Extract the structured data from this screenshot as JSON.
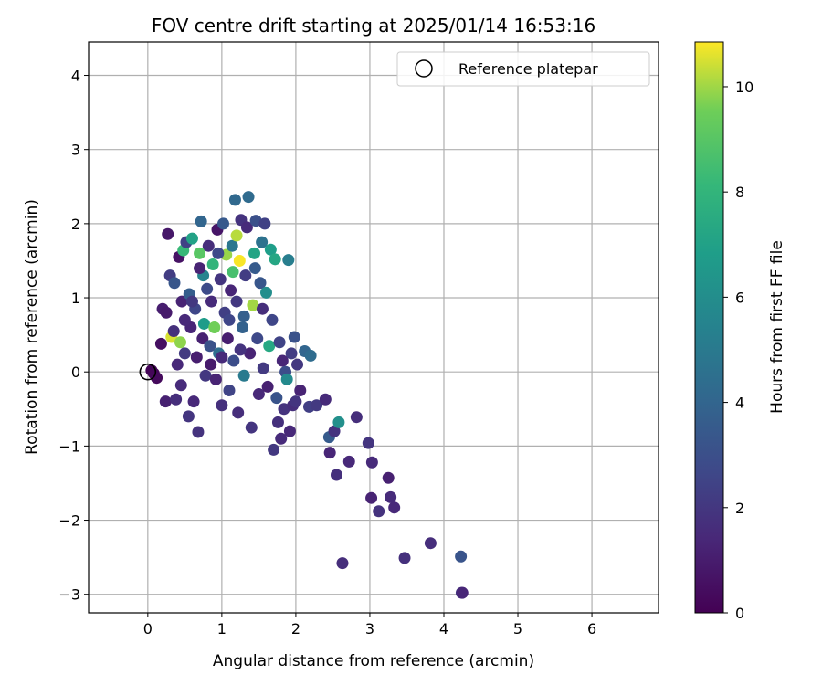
{
  "chart_data": {
    "type": "scatter",
    "title": "FOV centre drift starting at 2025/01/14 16:53:16",
    "xlabel": "Angular distance from reference (arcmin)",
    "ylabel": "Rotation from reference (arcmin)",
    "xlim": [
      -0.8,
      6.9
    ],
    "ylim": [
      -3.25,
      4.45
    ],
    "xticks": [
      0,
      1,
      2,
      3,
      4,
      5,
      6
    ],
    "yticks": [
      -3,
      -2,
      -1,
      0,
      1,
      2,
      3,
      4
    ],
    "grid": true,
    "legend": {
      "placement": "top-right",
      "entries": [
        "Reference platepar"
      ]
    },
    "colorbar": {
      "label": "Hours from first FF file",
      "range": [
        0,
        10.85
      ],
      "ticks": [
        0,
        2,
        4,
        6,
        8,
        10
      ],
      "colormap": "viridis"
    },
    "reference_point": {
      "x": 0,
      "y": 0
    },
    "points": [
      {
        "x": 0.05,
        "y": 0.02,
        "c": 0.1
      },
      {
        "x": 0.08,
        "y": -0.02,
        "c": 0.2
      },
      {
        "x": 0.12,
        "y": -0.08,
        "c": 0.3
      },
      {
        "x": 0.18,
        "y": 0.38,
        "c": 0.5
      },
      {
        "x": 0.2,
        "y": 0.85,
        "c": 1.0
      },
      {
        "x": 0.25,
        "y": 0.8,
        "c": 0.9
      },
      {
        "x": 0.27,
        "y": 1.86,
        "c": 0.8
      },
      {
        "x": 0.24,
        "y": -0.4,
        "c": 1.1
      },
      {
        "x": 0.3,
        "y": 1.3,
        "c": 2.2
      },
      {
        "x": 0.32,
        "y": 0.47,
        "c": 10.5
      },
      {
        "x": 0.35,
        "y": 0.55,
        "c": 1.7
      },
      {
        "x": 0.36,
        "y": 1.2,
        "c": 3.3
      },
      {
        "x": 0.38,
        "y": -0.37,
        "c": 1.6
      },
      {
        "x": 0.4,
        "y": 0.1,
        "c": 1.4
      },
      {
        "x": 0.42,
        "y": 1.55,
        "c": 0.6
      },
      {
        "x": 0.44,
        "y": 0.4,
        "c": 9.8
      },
      {
        "x": 0.45,
        "y": -0.18,
        "c": 1.5
      },
      {
        "x": 0.46,
        "y": 0.95,
        "c": 1.2
      },
      {
        "x": 0.48,
        "y": 1.64,
        "c": 8.2
      },
      {
        "x": 0.5,
        "y": 0.25,
        "c": 2.1
      },
      {
        "x": 0.52,
        "y": 1.75,
        "c": 2.4
      },
      {
        "x": 0.55,
        "y": -0.6,
        "c": 1.9
      },
      {
        "x": 0.56,
        "y": 1.05,
        "c": 3.6
      },
      {
        "x": 0.58,
        "y": 0.6,
        "c": 1.3
      },
      {
        "x": 0.6,
        "y": 1.8,
        "c": 7.0
      },
      {
        "x": 0.62,
        "y": -0.4,
        "c": 1.4
      },
      {
        "x": 0.64,
        "y": 0.85,
        "c": 2.6
      },
      {
        "x": 0.66,
        "y": 0.2,
        "c": 1.0
      },
      {
        "x": 0.68,
        "y": -0.81,
        "c": 1.8
      },
      {
        "x": 0.7,
        "y": 1.6,
        "c": 9.0
      },
      {
        "x": 0.72,
        "y": 2.03,
        "c": 4.0
      },
      {
        "x": 0.74,
        "y": 0.45,
        "c": 1.1
      },
      {
        "x": 0.75,
        "y": 1.3,
        "c": 5.5
      },
      {
        "x": 0.76,
        "y": 0.65,
        "c": 6.7
      },
      {
        "x": 0.78,
        "y": -0.05,
        "c": 2.0
      },
      {
        "x": 0.8,
        "y": 1.12,
        "c": 2.8
      },
      {
        "x": 0.82,
        "y": 1.7,
        "c": 1.6
      },
      {
        "x": 0.84,
        "y": 0.35,
        "c": 3.1
      },
      {
        "x": 0.86,
        "y": 0.95,
        "c": 1.5
      },
      {
        "x": 0.88,
        "y": 1.45,
        "c": 8.0
      },
      {
        "x": 0.9,
        "y": 0.6,
        "c": 9.5
      },
      {
        "x": 0.92,
        "y": -0.1,
        "c": 1.2
      },
      {
        "x": 0.94,
        "y": 1.92,
        "c": 0.7
      },
      {
        "x": 0.96,
        "y": 0.25,
        "c": 4.4
      },
      {
        "x": 0.98,
        "y": 1.25,
        "c": 1.9
      },
      {
        "x": 1.0,
        "y": -0.45,
        "c": 1.7
      },
      {
        "x": 1.02,
        "y": 2.0,
        "c": 3.4
      },
      {
        "x": 1.04,
        "y": 0.8,
        "c": 2.3
      },
      {
        "x": 1.06,
        "y": 1.58,
        "c": 9.9
      },
      {
        "x": 1.08,
        "y": 0.45,
        "c": 1.0
      },
      {
        "x": 1.1,
        "y": -0.25,
        "c": 2.5
      },
      {
        "x": 1.12,
        "y": 1.1,
        "c": 1.3
      },
      {
        "x": 1.14,
        "y": 1.7,
        "c": 4.8
      },
      {
        "x": 1.16,
        "y": 0.15,
        "c": 2.9
      },
      {
        "x": 1.18,
        "y": 2.32,
        "c": 4.1
      },
      {
        "x": 1.2,
        "y": 1.84,
        "c": 10.2
      },
      {
        "x": 1.2,
        "y": 0.95,
        "c": 2.0
      },
      {
        "x": 1.22,
        "y": -0.55,
        "c": 1.6
      },
      {
        "x": 1.24,
        "y": 1.5,
        "c": 10.8
      },
      {
        "x": 1.26,
        "y": 2.05,
        "c": 1.8
      },
      {
        "x": 1.28,
        "y": 0.6,
        "c": 3.8
      },
      {
        "x": 1.3,
        "y": -0.05,
        "c": 5.0
      },
      {
        "x": 1.32,
        "y": 1.3,
        "c": 2.2
      },
      {
        "x": 1.34,
        "y": 1.95,
        "c": 1.5
      },
      {
        "x": 1.36,
        "y": 2.36,
        "c": 4.2
      },
      {
        "x": 1.38,
        "y": 0.25,
        "c": 1.2
      },
      {
        "x": 1.4,
        "y": -0.75,
        "c": 1.9
      },
      {
        "x": 1.42,
        "y": 0.9,
        "c": 10.0
      },
      {
        "x": 1.44,
        "y": 1.6,
        "c": 7.1
      },
      {
        "x": 1.46,
        "y": 2.04,
        "c": 3.0
      },
      {
        "x": 1.48,
        "y": 0.45,
        "c": 2.7
      },
      {
        "x": 1.5,
        "y": -0.3,
        "c": 1.4
      },
      {
        "x": 1.52,
        "y": 1.2,
        "c": 3.3
      },
      {
        "x": 1.54,
        "y": 1.75,
        "c": 4.6
      },
      {
        "x": 1.56,
        "y": 0.05,
        "c": 2.1
      },
      {
        "x": 1.58,
        "y": 2.0,
        "c": 2.4
      },
      {
        "x": 1.6,
        "y": 1.07,
        "c": 6.0
      },
      {
        "x": 1.62,
        "y": -0.2,
        "c": 1.1
      },
      {
        "x": 1.64,
        "y": 0.35,
        "c": 7.3
      },
      {
        "x": 1.66,
        "y": 1.65,
        "c": 6.8
      },
      {
        "x": 1.68,
        "y": 0.7,
        "c": 2.6
      },
      {
        "x": 1.7,
        "y": -1.05,
        "c": 2.0
      },
      {
        "x": 1.72,
        "y": 1.52,
        "c": 7.2
      },
      {
        "x": 1.74,
        "y": -0.35,
        "c": 3.2
      },
      {
        "x": 1.76,
        "y": -0.68,
        "c": 1.7
      },
      {
        "x": 1.78,
        "y": 0.4,
        "c": 2.5
      },
      {
        "x": 1.8,
        "y": -0.9,
        "c": 1.5
      },
      {
        "x": 1.82,
        "y": 0.15,
        "c": 1.3
      },
      {
        "x": 1.84,
        "y": -0.5,
        "c": 1.8
      },
      {
        "x": 1.86,
        "y": 0.0,
        "c": 2.9
      },
      {
        "x": 1.88,
        "y": -0.1,
        "c": 5.8
      },
      {
        "x": 1.9,
        "y": 1.51,
        "c": 5.2
      },
      {
        "x": 1.92,
        "y": -0.8,
        "c": 1.4
      },
      {
        "x": 1.94,
        "y": 0.25,
        "c": 2.2
      },
      {
        "x": 1.96,
        "y": -0.45,
        "c": 1.6
      },
      {
        "x": 1.98,
        "y": 0.47,
        "c": 3.1
      },
      {
        "x": 2.0,
        "y": -0.4,
        "c": 1.9
      },
      {
        "x": 2.02,
        "y": 0.1,
        "c": 2.0
      },
      {
        "x": 2.06,
        "y": -0.25,
        "c": 1.2
      },
      {
        "x": 2.12,
        "y": 0.28,
        "c": 4.0
      },
      {
        "x": 2.18,
        "y": -0.47,
        "c": 2.3
      },
      {
        "x": 2.2,
        "y": 0.22,
        "c": 4.3
      },
      {
        "x": 2.28,
        "y": -0.45,
        "c": 2.1
      },
      {
        "x": 2.4,
        "y": -0.37,
        "c": 1.5
      },
      {
        "x": 2.45,
        "y": -0.88,
        "c": 3.5
      },
      {
        "x": 2.52,
        "y": -0.8,
        "c": 1.8
      },
      {
        "x": 2.58,
        "y": -0.68,
        "c": 6.1
      },
      {
        "x": 2.46,
        "y": -1.09,
        "c": 1.3
      },
      {
        "x": 2.55,
        "y": -1.39,
        "c": 1.7
      },
      {
        "x": 2.72,
        "y": -1.21,
        "c": 1.4
      },
      {
        "x": 2.82,
        "y": -0.61,
        "c": 1.6
      },
      {
        "x": 2.98,
        "y": -0.96,
        "c": 1.9
      },
      {
        "x": 3.03,
        "y": -1.22,
        "c": 1.5
      },
      {
        "x": 3.02,
        "y": -1.7,
        "c": 1.2
      },
      {
        "x": 3.12,
        "y": -1.88,
        "c": 1.8
      },
      {
        "x": 3.25,
        "y": -1.43,
        "c": 1.1
      },
      {
        "x": 3.28,
        "y": -1.69,
        "c": 1.5
      },
      {
        "x": 3.33,
        "y": -1.83,
        "c": 1.4
      },
      {
        "x": 2.63,
        "y": -2.58,
        "c": 1.6
      },
      {
        "x": 3.47,
        "y": -2.51,
        "c": 1.7
      },
      {
        "x": 3.82,
        "y": -2.31,
        "c": 1.6
      },
      {
        "x": 4.23,
        "y": -2.49,
        "c": 3.2
      },
      {
        "x": 4.24,
        "y": -2.98,
        "c": 2.0
      },
      {
        "x": 4.25,
        "y": -2.98,
        "c": 1.3
      },
      {
        "x": 1.0,
        "y": 0.2,
        "c": 1.5
      },
      {
        "x": 1.1,
        "y": 0.7,
        "c": 2.6
      },
      {
        "x": 0.6,
        "y": 0.95,
        "c": 2.0
      },
      {
        "x": 0.7,
        "y": 1.4,
        "c": 1.2
      },
      {
        "x": 1.3,
        "y": 0.75,
        "c": 3.7
      },
      {
        "x": 1.15,
        "y": 1.35,
        "c": 8.6
      },
      {
        "x": 0.85,
        "y": 0.1,
        "c": 0.9
      },
      {
        "x": 0.95,
        "y": 1.6,
        "c": 2.7
      },
      {
        "x": 1.25,
        "y": 0.3,
        "c": 1.8
      },
      {
        "x": 0.5,
        "y": 0.7,
        "c": 1.4
      },
      {
        "x": 1.45,
        "y": 1.4,
        "c": 3.5
      },
      {
        "x": 1.55,
        "y": 0.85,
        "c": 1.6
      }
    ]
  }
}
